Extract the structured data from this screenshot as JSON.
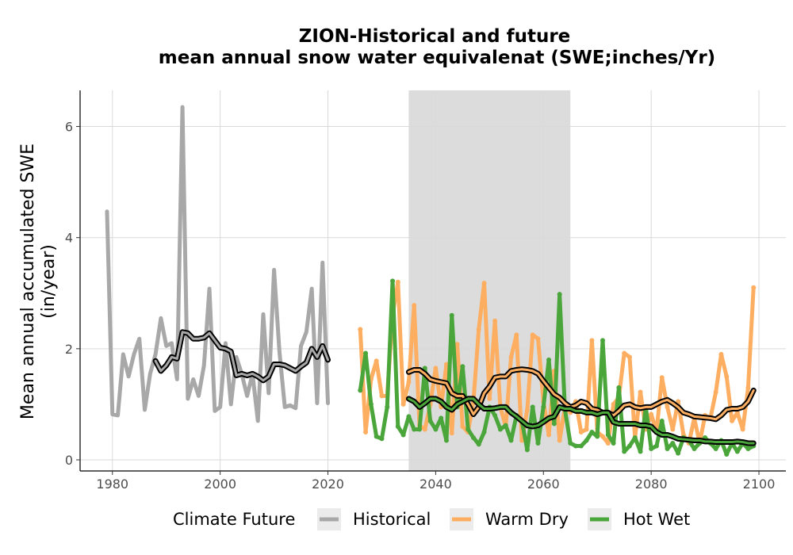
{
  "chart_data": {
    "type": "line",
    "title_line1": "ZION-Historical and future",
    "title_line2": "mean annual snow water equivalenat (SWE;inches/Yr)",
    "xlabel": "",
    "ylabel_line1": "Mean annual accumulated SWE",
    "ylabel_line2": "(in/year)",
    "xlim": [
      1974,
      2105
    ],
    "ylim": [
      -0.2,
      6.65
    ],
    "xticks": [
      1980,
      2000,
      2020,
      2040,
      2060,
      2080,
      2100
    ],
    "yticks": [
      0,
      2,
      4,
      6
    ],
    "grid": true,
    "shaded_period": [
      2035,
      2065
    ],
    "legend": {
      "title": "Climate Future",
      "position": "bottom",
      "entries": [
        "Historical",
        "Warm Dry",
        "Hot Wet"
      ]
    },
    "colors": {
      "Historical": "#a8a8a8",
      "Warm Dry": "#fdae61",
      "Hot Wet": "#4aa53a",
      "shade": "#dcdcdc",
      "smooth": "#000000"
    },
    "series": [
      {
        "name": "Historical",
        "x": [
          1979,
          1980,
          1981,
          1982,
          1983,
          1984,
          1985,
          1986,
          1987,
          1988,
          1989,
          1990,
          1991,
          1992,
          1993,
          1994,
          1995,
          1996,
          1997,
          1998,
          1999,
          2000,
          2001,
          2002,
          2003,
          2004,
          2005,
          2006,
          2007,
          2008,
          2009,
          2010,
          2011,
          2012,
          2013,
          2014,
          2015,
          2016,
          2017,
          2018,
          2019,
          2020
        ],
        "y": [
          4.47,
          0.82,
          0.8,
          1.9,
          1.5,
          1.9,
          2.18,
          0.9,
          1.55,
          1.9,
          2.55,
          2.05,
          2.1,
          1.45,
          6.35,
          1.1,
          1.45,
          1.15,
          1.7,
          3.08,
          0.88,
          0.95,
          2.1,
          1.0,
          1.85,
          1.55,
          1.15,
          1.55,
          0.7,
          2.62,
          1.2,
          3.42,
          1.95,
          0.95,
          0.98,
          0.93,
          2.05,
          2.3,
          3.08,
          1.02,
          3.55,
          1.02
        ]
      },
      {
        "name": "Warm Dry",
        "x": [
          2026,
          2027,
          2028,
          2029,
          2030,
          2031,
          2032,
          2033,
          2034,
          2035,
          2036,
          2037,
          2038,
          2039,
          2040,
          2041,
          2042,
          2043,
          2044,
          2045,
          2046,
          2047,
          2048,
          2049,
          2050,
          2051,
          2052,
          2053,
          2054,
          2055,
          2056,
          2057,
          2058,
          2059,
          2060,
          2061,
          2062,
          2063,
          2064,
          2065,
          2066,
          2067,
          2068,
          2069,
          2070,
          2071,
          2072,
          2073,
          2074,
          2075,
          2076,
          2077,
          2078,
          2079,
          2080,
          2081,
          2082,
          2083,
          2084,
          2085,
          2086,
          2087,
          2088,
          2089,
          2090,
          2091,
          2092,
          2093,
          2094,
          2095,
          2096,
          2097,
          2098,
          2099
        ],
        "y": [
          2.35,
          0.5,
          1.45,
          1.78,
          1.15,
          1.15,
          2.6,
          3.2,
          1.0,
          1.4,
          2.78,
          0.62,
          0.55,
          1.0,
          1.65,
          0.95,
          1.72,
          0.48,
          2.08,
          0.6,
          0.5,
          1.05,
          2.35,
          3.18,
          1.1,
          2.5,
          0.95,
          0.6,
          1.85,
          2.25,
          0.35,
          0.9,
          2.25,
          2.18,
          1.05,
          0.45,
          1.6,
          0.35,
          0.95,
          0.85,
          1.05,
          0.5,
          0.55,
          2.15,
          0.5,
          0.42,
          0.3,
          1.0,
          1.12,
          1.92,
          1.85,
          0.4,
          1.22,
          0.55,
          0.82,
          0.52,
          1.48,
          0.95,
          0.55,
          1.05,
          0.45,
          0.3,
          0.75,
          0.3,
          0.8,
          0.75,
          1.22,
          1.9,
          1.5,
          0.7,
          0.85,
          0.55,
          1.3,
          3.1
        ]
      },
      {
        "name": "Hot Wet",
        "x": [
          2026,
          2027,
          2028,
          2029,
          2030,
          2031,
          2032,
          2033,
          2034,
          2035,
          2036,
          2037,
          2038,
          2039,
          2040,
          2041,
          2042,
          2043,
          2044,
          2045,
          2046,
          2047,
          2048,
          2049,
          2050,
          2051,
          2052,
          2053,
          2054,
          2055,
          2056,
          2057,
          2058,
          2059,
          2060,
          2061,
          2062,
          2063,
          2064,
          2065,
          2066,
          2067,
          2068,
          2069,
          2070,
          2071,
          2072,
          2073,
          2074,
          2075,
          2076,
          2077,
          2078,
          2079,
          2080,
          2081,
          2082,
          2083,
          2084,
          2085,
          2086,
          2087,
          2088,
          2089,
          2090,
          2091,
          2092,
          2093,
          2094,
          2095,
          2096,
          2097,
          2098,
          2099
        ],
        "y": [
          1.25,
          1.92,
          1.0,
          0.42,
          0.38,
          0.95,
          3.22,
          0.6,
          0.45,
          0.78,
          0.55,
          0.55,
          1.65,
          0.7,
          0.55,
          0.75,
          0.35,
          2.6,
          0.95,
          1.68,
          0.55,
          0.4,
          0.28,
          0.5,
          0.95,
          0.8,
          0.55,
          0.62,
          0.35,
          0.8,
          0.7,
          0.18,
          0.95,
          0.3,
          0.95,
          1.8,
          0.65,
          2.98,
          0.9,
          0.3,
          0.25,
          0.25,
          0.35,
          0.5,
          0.42,
          2.15,
          0.45,
          0.3,
          1.3,
          0.15,
          0.25,
          0.4,
          0.15,
          0.95,
          0.2,
          0.25,
          0.7,
          0.2,
          0.3,
          0.12,
          0.4,
          0.35,
          0.2,
          0.3,
          0.4,
          0.3,
          0.2,
          0.35,
          0.1,
          0.3,
          0.15,
          0.3,
          0.2,
          0.25
        ]
      }
    ],
    "smoothed": [
      {
        "name": "Historical",
        "x": [
          1988,
          1989,
          1990,
          1991,
          1992,
          1993,
          1994,
          1995,
          1996,
          1997,
          1998,
          1999,
          2000,
          2001,
          2002,
          2003,
          2004,
          2005,
          2006,
          2007,
          2008,
          2009,
          2010,
          2011,
          2012,
          2013,
          2014,
          2015,
          2016,
          2017,
          2018,
          2019,
          2020
        ],
        "y": [
          1.78,
          1.6,
          1.7,
          1.85,
          1.82,
          2.3,
          2.28,
          2.18,
          2.18,
          2.2,
          2.28,
          2.15,
          2.02,
          2.0,
          1.95,
          1.52,
          1.55,
          1.52,
          1.55,
          1.5,
          1.43,
          1.5,
          1.72,
          1.72,
          1.7,
          1.65,
          1.6,
          1.68,
          1.75,
          2.0,
          1.85,
          2.05,
          1.8
        ]
      },
      {
        "name": "Warm Dry",
        "x": [
          2035,
          2036,
          2037,
          2038,
          2039,
          2040,
          2041,
          2042,
          2043,
          2044,
          2045,
          2046,
          2047,
          2048,
          2049,
          2050,
          2051,
          2052,
          2053,
          2054,
          2055,
          2056,
          2057,
          2058,
          2059,
          2060,
          2061,
          2062,
          2063,
          2064,
          2065,
          2066,
          2067,
          2068,
          2069,
          2070,
          2071,
          2072,
          2073,
          2074,
          2075,
          2076,
          2077,
          2078,
          2079,
          2080,
          2081,
          2082,
          2083,
          2084,
          2085,
          2086,
          2087,
          2088,
          2089,
          2090,
          2091,
          2092,
          2093,
          2094,
          2095,
          2096,
          2097,
          2098,
          2099
        ],
        "y": [
          1.58,
          1.62,
          1.62,
          1.55,
          1.45,
          1.42,
          1.4,
          1.38,
          1.2,
          1.15,
          1.15,
          1.0,
          0.82,
          0.95,
          1.2,
          1.32,
          1.48,
          1.5,
          1.5,
          1.6,
          1.62,
          1.63,
          1.62,
          1.6,
          1.55,
          1.42,
          1.3,
          1.18,
          1.12,
          1.02,
          0.95,
          0.98,
          1.05,
          1.02,
          0.92,
          0.9,
          0.85,
          0.85,
          0.8,
          0.88,
          0.98,
          1.0,
          0.95,
          0.93,
          0.95,
          0.95,
          1.0,
          1.05,
          1.08,
          1.02,
          0.95,
          0.85,
          0.82,
          0.78,
          0.77,
          0.76,
          0.75,
          0.73,
          0.8,
          0.9,
          0.92,
          0.92,
          0.95,
          1.05,
          1.25
        ]
      },
      {
        "name": "Hot Wet",
        "x": [
          2035,
          2036,
          2037,
          2038,
          2039,
          2040,
          2041,
          2042,
          2043,
          2044,
          2045,
          2046,
          2047,
          2048,
          2049,
          2050,
          2051,
          2052,
          2053,
          2054,
          2055,
          2056,
          2057,
          2058,
          2059,
          2060,
          2061,
          2062,
          2063,
          2064,
          2065,
          2066,
          2067,
          2068,
          2069,
          2070,
          2071,
          2072,
          2073,
          2074,
          2075,
          2076,
          2077,
          2078,
          2079,
          2080,
          2081,
          2082,
          2083,
          2084,
          2085,
          2086,
          2087,
          2088,
          2089,
          2090,
          2091,
          2092,
          2093,
          2094,
          2095,
          2096,
          2097,
          2098,
          2099
        ],
        "y": [
          1.1,
          1.05,
          0.95,
          1.02,
          1.1,
          1.1,
          1.05,
          0.95,
          0.9,
          1.0,
          1.05,
          1.1,
          1.1,
          1.0,
          0.92,
          0.92,
          0.93,
          0.95,
          0.95,
          0.85,
          0.78,
          0.7,
          0.62,
          0.6,
          0.62,
          0.68,
          0.75,
          0.78,
          0.95,
          0.92,
          0.92,
          0.88,
          0.88,
          0.85,
          0.85,
          0.82,
          0.85,
          0.85,
          0.68,
          0.65,
          0.65,
          0.65,
          0.65,
          0.62,
          0.62,
          0.6,
          0.5,
          0.45,
          0.45,
          0.42,
          0.38,
          0.37,
          0.36,
          0.35,
          0.35,
          0.33,
          0.33,
          0.32,
          0.32,
          0.32,
          0.32,
          0.33,
          0.32,
          0.3,
          0.3
        ]
      }
    ]
  }
}
